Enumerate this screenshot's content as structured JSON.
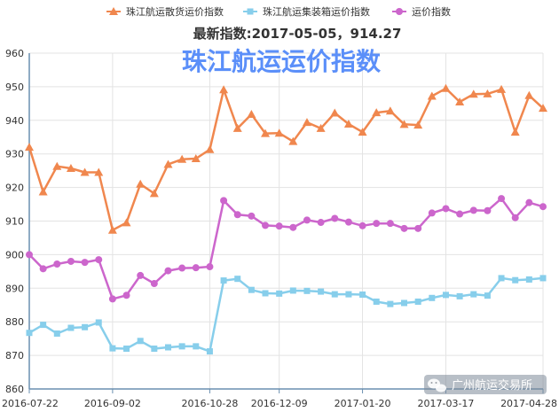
{
  "chart_data": {
    "type": "line",
    "title": "珠江航运运价指数",
    "subtitle": "最新指数:2017-05-05，914.27",
    "ylim": [
      860,
      960
    ],
    "yticks": [
      860,
      870,
      880,
      890,
      900,
      910,
      920,
      930,
      940,
      950,
      960
    ],
    "xticks": [
      "2016-07-22",
      "2016-09-02",
      "2016-10-28",
      "2016-12-09",
      "2017-01-20",
      "2017-03-17",
      "2017-04-28"
    ],
    "xtick_indices": [
      0,
      6,
      13,
      18,
      24,
      30,
      37
    ],
    "n_points": 38,
    "grid": true,
    "legend_position": "top",
    "series": [
      {
        "name": "珠江航运散货运价指数",
        "color": "#f0874e",
        "marker": "triangle",
        "values": [
          932,
          918.7,
          926.3,
          925.7,
          924.5,
          924.5,
          907.3,
          909.5,
          921,
          918.2,
          926.9,
          928.4,
          928.6,
          931.3,
          949.1,
          937.6,
          941.8,
          936.1,
          936.2,
          933.7,
          939.4,
          937.6,
          942.2,
          938.9,
          936.5,
          942.3,
          942.8,
          938.8,
          938.6,
          947.2,
          949.5,
          945.5,
          947.8,
          947.9,
          949.2,
          936.5,
          947.4,
          943.6
        ]
      },
      {
        "name": "珠江航运集装箱运价指数",
        "color": "#87ceeb",
        "marker": "square",
        "values": [
          876.7,
          879.1,
          876.5,
          878.2,
          878.4,
          879.8,
          872.1,
          872,
          874.3,
          872,
          872.4,
          872.7,
          872.7,
          871.2,
          892.3,
          892.8,
          889.5,
          888.5,
          888.4,
          889.3,
          889.2,
          889,
          888.2,
          888.2,
          888.1,
          886,
          885.3,
          885.6,
          886,
          887.1,
          888,
          887.6,
          888.2,
          887.8,
          893,
          892.4,
          892.6,
          893
        ]
      },
      {
        "name": "运价指数",
        "color": "#cc66cc",
        "marker": "circle",
        "values": [
          900,
          895.8,
          897.2,
          898,
          897.7,
          898.5,
          886.8,
          887.9,
          893.8,
          891.4,
          895.2,
          896,
          896.1,
          896.4,
          916.1,
          911.9,
          911.5,
          908.7,
          908.5,
          908.1,
          910.3,
          909.6,
          910.8,
          909.7,
          908.6,
          909.3,
          909.3,
          907.8,
          907.8,
          912.4,
          913.7,
          912.1,
          913.2,
          913.1,
          916.7,
          911,
          915.5,
          914.3
        ]
      }
    ]
  },
  "watermark": {
    "icon": "wechat-bubble-icon",
    "text": "广州航运交易所"
  }
}
